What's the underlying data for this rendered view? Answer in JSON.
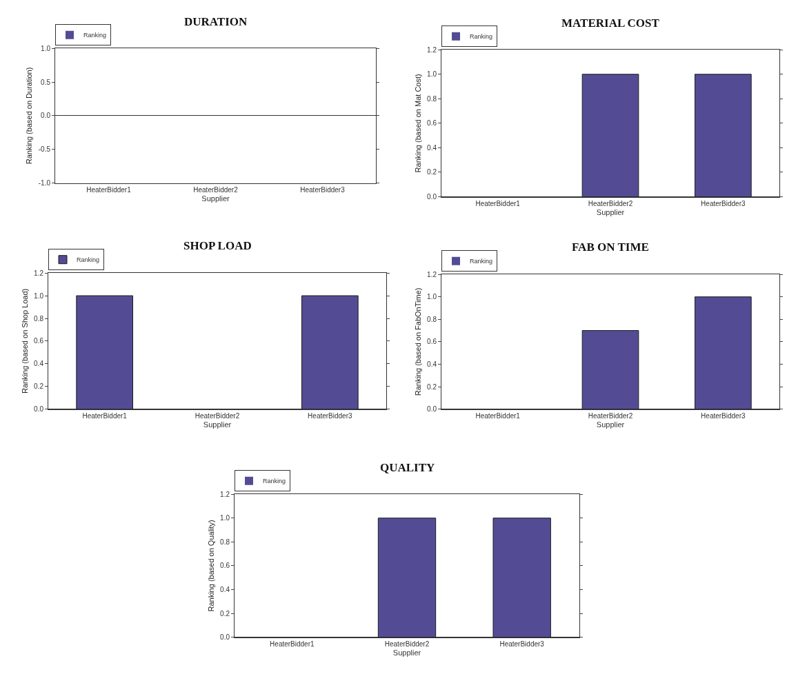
{
  "chart_data": [
    {
      "type": "bar",
      "title": "DURATION",
      "xlabel": "Supplier",
      "ylabel": "Ranking (based on Duration)",
      "categories": [
        "HeaterBidder1",
        "HeaterBidder2",
        "HeaterBidder3"
      ],
      "series": [
        {
          "name": "Ranking",
          "color": "#534c94",
          "values": [
            0,
            0,
            0
          ]
        }
      ],
      "ylim": [
        -1,
        1
      ],
      "yticks": [
        {
          "value": -1,
          "label": "-1.0"
        },
        {
          "value": -0.5,
          "label": "-0.5"
        },
        {
          "value": 0,
          "label": "0.0"
        },
        {
          "value": 0.5,
          "label": "0.5"
        },
        {
          "value": 1,
          "label": "1.0"
        }
      ],
      "legend": "top left"
    },
    {
      "type": "bar",
      "title": "MATERIAL COST",
      "xlabel": "Supplier",
      "ylabel": "Ranking (based on Mat Cost)",
      "categories": [
        "HeaterBidder1",
        "HeaterBidder2",
        "HeaterBidder3"
      ],
      "series": [
        {
          "name": "Ranking",
          "color": "#534c94",
          "values": [
            0,
            1,
            1
          ]
        }
      ],
      "ylim": [
        0,
        1.2
      ],
      "yticks": [
        {
          "value": 0,
          "label": "0.0"
        },
        {
          "value": 0.2,
          "label": "0.2"
        },
        {
          "value": 0.4,
          "label": "0.4"
        },
        {
          "value": 0.6,
          "label": "0.6"
        },
        {
          "value": 0.8,
          "label": "0.8"
        },
        {
          "value": 1,
          "label": "1.0"
        },
        {
          "value": 1.2,
          "label": "1.2"
        }
      ],
      "legend": "top left"
    },
    {
      "type": "bar",
      "title": "SHOP LOAD",
      "xlabel": "Supplier",
      "ylabel": "Ranking (based on Shop Load)",
      "categories": [
        "HeaterBidder1",
        "HeaterBidder2",
        "HeaterBidder3"
      ],
      "series": [
        {
          "name": "Ranking",
          "color": "#534c94",
          "values": [
            1,
            0,
            1
          ]
        }
      ],
      "ylim": [
        0,
        1.2
      ],
      "yticks": [
        {
          "value": 0,
          "label": "0.0"
        },
        {
          "value": 0.2,
          "label": "0.2"
        },
        {
          "value": 0.4,
          "label": "0.4"
        },
        {
          "value": 0.6,
          "label": "0.6"
        },
        {
          "value": 0.8,
          "label": "0.8"
        },
        {
          "value": 1,
          "label": "1.0"
        },
        {
          "value": 1.2,
          "label": "1.2"
        }
      ],
      "legend": "top left"
    },
    {
      "type": "bar",
      "title": "FAB ON TIME",
      "xlabel": "Supplier",
      "ylabel": "Ranking (based on FabOnTime)",
      "categories": [
        "HeaterBidder1",
        "HeaterBidder2",
        "HeaterBidder3"
      ],
      "series": [
        {
          "name": "Ranking",
          "color": "#534c94",
          "values": [
            0,
            0.7,
            1
          ]
        }
      ],
      "ylim": [
        0,
        1.2
      ],
      "yticks": [
        {
          "value": 0,
          "label": "0.0"
        },
        {
          "value": 0.2,
          "label": "0.2"
        },
        {
          "value": 0.4,
          "label": "0.4"
        },
        {
          "value": 0.6,
          "label": "0.6"
        },
        {
          "value": 0.8,
          "label": "0.8"
        },
        {
          "value": 1,
          "label": "1.0"
        },
        {
          "value": 1.2,
          "label": "1.2"
        }
      ],
      "legend": "top left"
    },
    {
      "type": "bar",
      "title": "QUALITY",
      "xlabel": "Supplier",
      "ylabel": "Ranking (based on Quality)",
      "categories": [
        "HeaterBidder1",
        "HeaterBidder2",
        "HeaterBidder3"
      ],
      "series": [
        {
          "name": "Ranking",
          "color": "#534c94",
          "values": [
            0,
            1,
            1
          ]
        }
      ],
      "ylim": [
        0,
        1.2
      ],
      "yticks": [
        {
          "value": 0,
          "label": "0.0"
        },
        {
          "value": 0.2,
          "label": "0.2"
        },
        {
          "value": 0.4,
          "label": "0.4"
        },
        {
          "value": 0.6,
          "label": "0.6"
        },
        {
          "value": 0.8,
          "label": "0.8"
        },
        {
          "value": 1,
          "label": "1.0"
        },
        {
          "value": 1.2,
          "label": "1.2"
        }
      ],
      "legend": "top left"
    }
  ]
}
